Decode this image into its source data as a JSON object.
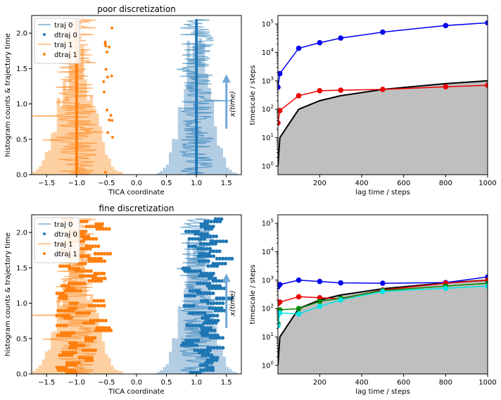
{
  "colors": {
    "traj0": "#1f77b4",
    "traj1": "#ff7f0e",
    "hist0": "#b3cde3",
    "hist1": "#fdd0a2",
    "arrow": "#6fa8d6",
    "axes": "#000000",
    "gray_fill": "#bfbfbf",
    "its_blue": "#0000ee",
    "its_red": "#ee0000",
    "its_green": "#008800",
    "its_cyan": "#00e5e5",
    "its_black": "#000000"
  },
  "chart_data": [
    {
      "type": "area",
      "title": "poor discretization",
      "xlabel": "TICA coordinate",
      "ylabel": "histogram counts & trajectory time",
      "xlim": [
        -1.75,
        1.75
      ],
      "ylim": [
        0,
        2.25
      ],
      "xticks": [
        -1.5,
        -1.0,
        -0.5,
        0.0,
        0.5,
        1.0,
        1.5
      ],
      "xtick_labels": [
        "−1.5",
        "−1.0",
        "−0.5",
        "0.0",
        "0.5",
        "1.0",
        "1.5"
      ],
      "yticks": [
        0.0,
        0.5,
        1.0,
        1.5,
        2.0
      ],
      "ytick_labels": [
        "0.0",
        "0.5",
        "1.0",
        "1.5",
        "2.0"
      ],
      "legend": {
        "placement": "upper-left",
        "entries": [
          "traj 0",
          "dtraj 0",
          "traj 1",
          "dtraj 1"
        ]
      },
      "annotation": "x(time)",
      "dtraj_centers": [
        -1.0,
        1.0
      ],
      "hist0_peak": 2.0,
      "hist1_peak": 1.8
    },
    {
      "type": "line",
      "log_y": true,
      "xlabel": "lag time / steps",
      "ylabel": "timescale / steps",
      "xlim": [
        1,
        1000
      ],
      "ylim_exp": [
        -0.3,
        5.3
      ],
      "xticks": [
        200,
        400,
        600,
        800,
        1000
      ],
      "xtick_labels": [
        "200",
        "400",
        "600",
        "800",
        "1000"
      ],
      "ytick_exps": [
        0,
        1,
        2,
        3,
        4,
        5
      ],
      "ytick_labels": [
        "10",
        "10",
        "10",
        "10",
        "10",
        "10"
      ],
      "ytick_sups": [
        "0",
        "1",
        "2",
        "3",
        "4",
        "5"
      ],
      "grid": false,
      "series": [
        {
          "color": "its_blue",
          "x": [
            1,
            10,
            100,
            200,
            300,
            500,
            800,
            1000
          ],
          "y": [
            600,
            1800,
            14000,
            22000,
            32000,
            52000,
            88000,
            110000
          ]
        },
        {
          "color": "its_red",
          "x": [
            1,
            10,
            100,
            200,
            300,
            500,
            800,
            1000
          ],
          "y": [
            33,
            90,
            300,
            450,
            470,
            500,
            620,
            700
          ]
        }
      ],
      "reference": {
        "x": [
          1,
          10,
          100,
          200,
          300,
          500,
          800,
          1000
        ],
        "y": [
          1,
          10,
          100,
          200,
          300,
          500,
          800,
          1000
        ]
      }
    },
    {
      "type": "area",
      "title": "fine discretization",
      "xlabel": "TICA coordinate",
      "ylabel": "histogram counts & trajectory time",
      "xlim": [
        -1.75,
        1.75
      ],
      "ylim": [
        0,
        2.25
      ],
      "xticks": [
        -1.5,
        -1.0,
        -0.5,
        0.0,
        0.5,
        1.0,
        1.5
      ],
      "xtick_labels": [
        "−1.5",
        "−1.0",
        "−0.5",
        "0.0",
        "0.5",
        "1.0",
        "1.5"
      ],
      "yticks": [
        0.0,
        0.5,
        1.0,
        1.5,
        2.0
      ],
      "ytick_labels": [
        "0.0",
        "0.5",
        "1.0",
        "1.5",
        "2.0"
      ],
      "legend": {
        "placement": "upper-left",
        "entries": [
          "traj 0",
          "dtraj 0",
          "traj 1",
          "dtraj 1"
        ]
      },
      "annotation": "x(time)",
      "hist0_peak": 2.0,
      "hist1_peak": 1.8
    },
    {
      "type": "line",
      "log_y": true,
      "xlabel": "lag time / steps",
      "ylabel": "timescale / steps",
      "xlim": [
        1,
        1000
      ],
      "ylim_exp": [
        -0.3,
        5.3
      ],
      "xticks": [
        200,
        400,
        600,
        800,
        1000
      ],
      "xtick_labels": [
        "200",
        "400",
        "600",
        "800",
        "1000"
      ],
      "ytick_exps": [
        0,
        1,
        2,
        3,
        4,
        5
      ],
      "ytick_labels": [
        "10",
        "10",
        "10",
        "10",
        "10",
        "10"
      ],
      "ytick_sups": [
        "0",
        "1",
        "2",
        "3",
        "4",
        "5"
      ],
      "grid": false,
      "series": [
        {
          "color": "its_blue",
          "x": [
            1,
            10,
            100,
            200,
            300,
            500,
            800,
            1000
          ],
          "y": [
            580,
            700,
            1000,
            900,
            800,
            780,
            820,
            1300
          ]
        },
        {
          "color": "its_red",
          "x": [
            1,
            10,
            100,
            200,
            300,
            500,
            800,
            1000
          ],
          "y": [
            150,
            170,
            260,
            240,
            220,
            450,
            780,
            1000
          ]
        },
        {
          "color": "its_green",
          "x": [
            1,
            10,
            100,
            200,
            300,
            500,
            800,
            1000
          ],
          "y": [
            30,
            90,
            100,
            180,
            230,
            430,
            620,
            780
          ]
        },
        {
          "color": "its_cyan",
          "x": [
            1,
            10,
            100,
            200,
            300,
            500,
            800,
            1000
          ],
          "y": [
            25,
            70,
            65,
            120,
            200,
            400,
            520,
            620
          ]
        }
      ],
      "reference": {
        "x": [
          1,
          10,
          100,
          200,
          300,
          500,
          800,
          1000
        ],
        "y": [
          1,
          10,
          100,
          200,
          300,
          500,
          800,
          1000
        ]
      }
    }
  ]
}
